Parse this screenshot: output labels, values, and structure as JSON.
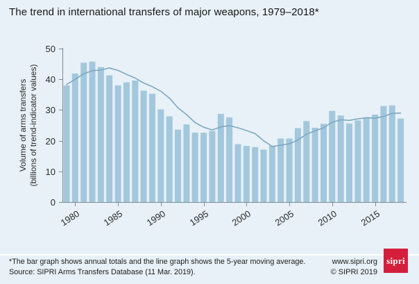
{
  "title": "The trend in international transfers of major weapons, 1979–2018*",
  "chart_data": {
    "type": "bar",
    "title": "The trend in international transfers of major weapons, 1979–2018*",
    "xlabel": "",
    "ylabel_line1": "Volume of arms transfers",
    "ylabel_line2": "(billions of trend-indicator values)",
    "ylim": [
      0,
      50
    ],
    "yticks": [
      0,
      10,
      20,
      30,
      40,
      50
    ],
    "xticks": [
      1980,
      1985,
      1990,
      1995,
      2000,
      2005,
      2010,
      2015
    ],
    "grid": false,
    "legend": "none",
    "x": [
      1979,
      1980,
      1981,
      1982,
      1983,
      1984,
      1985,
      1986,
      1987,
      1988,
      1989,
      1990,
      1991,
      1992,
      1993,
      1994,
      1995,
      1996,
      1997,
      1998,
      1999,
      2000,
      2001,
      2002,
      2003,
      2004,
      2005,
      2006,
      2007,
      2008,
      2009,
      2010,
      2011,
      2012,
      2013,
      2014,
      2015,
      2016,
      2017,
      2018
    ],
    "series": [
      {
        "name": "Annual totals (bar graph)",
        "type": "bar",
        "values": [
          38.0,
          41.9,
          45.4,
          45.8,
          44.0,
          41.3,
          38.0,
          39.0,
          39.6,
          36.3,
          35.3,
          30.2,
          27.9,
          23.6,
          25.3,
          22.6,
          22.6,
          23.2,
          28.7,
          27.6,
          18.9,
          18.3,
          17.9,
          17.1,
          18.4,
          20.7,
          20.7,
          24.1,
          26.4,
          24.2,
          25.5,
          29.7,
          28.2,
          25.6,
          26.6,
          27.6,
          28.5,
          31.3,
          31.5,
          27.2
        ]
      },
      {
        "name": "5-year moving average (line graph)",
        "type": "line",
        "values": [
          38.3,
          40.0,
          41.8,
          42.8,
          43.0,
          43.7,
          42.9,
          41.6,
          40.4,
          38.8,
          37.6,
          36.1,
          33.9,
          30.7,
          28.5,
          25.9,
          24.4,
          23.5,
          24.5,
          24.9,
          24.2,
          23.3,
          22.3,
          20.0,
          18.1,
          18.5,
          19.0,
          20.2,
          22.1,
          23.2,
          24.2,
          26.0,
          26.8,
          26.6,
          27.1,
          27.5,
          27.3,
          27.9,
          28.9,
          29.0
        ]
      }
    ]
  },
  "footer": {
    "note_line1": "*The bar graph shows annual totals and the line graph shows the 5-year moving average.",
    "note_line2": "Source: SIPRI Arms Transfers Database (11 Mar. 2019).",
    "website": "www.sipri.org",
    "copyright": "© SIPRI 2019",
    "logo_text": "sipri"
  },
  "colors": {
    "background": "#e8f1f7",
    "bar": "#a3c7dd",
    "line": "#7ca8c2",
    "axis": "#7d8a92",
    "tick_text": "#2a2a2a",
    "title_text": "#161616",
    "footer_text": "#1c1c1c",
    "separator": "#ffffff",
    "logo_red": "#d41f3c",
    "logo_text": "#ffffff"
  }
}
